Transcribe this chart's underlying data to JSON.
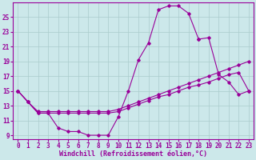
{
  "bg_color": "#cce8ea",
  "grid_color": "#aacccc",
  "line_color": "#990099",
  "xlim": [
    -0.5,
    23.5
  ],
  "ylim": [
    8.5,
    27.0
  ],
  "xticks": [
    0,
    1,
    2,
    3,
    4,
    5,
    6,
    7,
    8,
    9,
    10,
    11,
    12,
    13,
    14,
    15,
    16,
    17,
    18,
    19,
    20,
    21,
    22,
    23
  ],
  "yticks": [
    9,
    11,
    13,
    15,
    17,
    19,
    21,
    23,
    25
  ],
  "xlabel": "Windchill (Refroidissement éolien,°C)",
  "curve1_x": [
    0,
    1,
    2,
    3,
    4,
    5,
    6,
    7,
    8,
    9,
    10,
    11,
    12,
    13,
    14,
    15,
    16,
    17,
    18
  ],
  "curve1_y": [
    15.0,
    13.5,
    12.0,
    12.0,
    10.0,
    9.5,
    9.5,
    9.0,
    9.0,
    9.0,
    11.5,
    15.0,
    19.2,
    21.5,
    26.0,
    26.5,
    26.5,
    25.5,
    22.0
  ],
  "curve2_x": [
    18,
    19,
    20,
    21,
    22,
    23
  ],
  "curve2_y": [
    22.0,
    22.2,
    17.2,
    16.2,
    14.5,
    15.0
  ],
  "curve3_x": [
    0,
    1,
    2,
    3,
    4,
    5,
    6,
    7,
    8,
    9,
    10,
    11,
    12,
    13,
    14,
    15,
    16,
    17,
    18,
    19,
    20,
    21,
    22,
    23
  ],
  "curve3_y": [
    15.0,
    13.5,
    12.2,
    12.2,
    12.2,
    12.2,
    12.2,
    12.2,
    12.2,
    12.2,
    12.5,
    13.0,
    13.5,
    14.0,
    14.5,
    15.0,
    15.5,
    16.0,
    16.5,
    17.0,
    17.5,
    18.0,
    18.5,
    19.0
  ],
  "curve4_x": [
    0,
    1,
    2,
    3,
    4,
    5,
    6,
    7,
    8,
    9,
    10,
    11,
    12,
    13,
    14,
    15,
    16,
    17,
    18,
    19,
    20,
    21,
    22,
    23
  ],
  "curve4_y": [
    15.0,
    13.5,
    12.0,
    12.0,
    12.0,
    12.0,
    12.0,
    12.0,
    12.0,
    12.0,
    12.2,
    12.7,
    13.2,
    13.7,
    14.2,
    14.5,
    15.0,
    15.5,
    15.8,
    16.2,
    16.7,
    17.2,
    17.5,
    15.0
  ],
  "tick_fontsize": 5.5,
  "xlabel_fontsize": 6.0
}
